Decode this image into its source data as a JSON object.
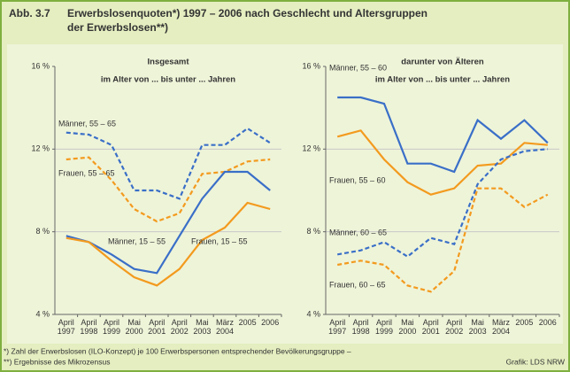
{
  "header": {
    "label": "Abb. 3.7",
    "title": [
      "Erwerbslosenquoten*) 1997 – 2006 nach Geschlecht und Altersgruppen",
      "der Erwerbslosen**)"
    ]
  },
  "chart_data": [
    {
      "type": "line",
      "title": "Insgesamt",
      "subtitle": "im Alter von ... bis unter ... Jahren",
      "categories": [
        "April 1997",
        "April 1998",
        "April 1999",
        "Mai 2000",
        "April 2001",
        "April 2002",
        "Mai 2003",
        "März 2004",
        "2005",
        "2006"
      ],
      "ylim": [
        4,
        16
      ],
      "yticks": [
        {
          "value": 4,
          "label": "4 %"
        },
        {
          "value": 8,
          "label": "8 %"
        },
        {
          "value": 12,
          "label": "12 %"
        },
        {
          "value": 16,
          "label": "16 %"
        }
      ],
      "grid": true,
      "series": [
        {
          "name": "Männer, 55 – 65",
          "color": "#3a6fc8",
          "style": "dashed",
          "values": [
            12.8,
            12.7,
            12.2,
            10.0,
            10.0,
            9.6,
            12.2,
            12.2,
            13.0,
            12.3
          ]
        },
        {
          "name": "Frauen, 55 – 65",
          "color": "#f39a1e",
          "style": "dashed",
          "values": [
            11.5,
            11.6,
            10.5,
            9.1,
            8.5,
            8.9,
            10.8,
            10.9,
            11.4,
            11.5
          ]
        },
        {
          "name": "Männer, 15 – 55",
          "color": "#3a6fc8",
          "style": "solid",
          "values": [
            7.8,
            7.5,
            6.9,
            6.2,
            6.0,
            7.8,
            9.6,
            10.9,
            10.9,
            10.0
          ]
        },
        {
          "name": "Frauen, 15 – 55",
          "color": "#f39a1e",
          "style": "solid",
          "values": [
            7.7,
            7.5,
            6.6,
            5.8,
            5.4,
            6.2,
            7.6,
            8.2,
            9.4,
            9.1
          ]
        }
      ]
    },
    {
      "type": "line",
      "title": "darunter von Älteren",
      "subtitle": "im Alter von ... bis unter ... Jahren",
      "categories": [
        "April 1997",
        "April 1998",
        "April 1999",
        "Mai 2000",
        "April 2001",
        "April 2002",
        "Mai 2003",
        "März 2004",
        "2005",
        "2006"
      ],
      "ylim": [
        4,
        16
      ],
      "yticks": [
        {
          "value": 4,
          "label": "4 %"
        },
        {
          "value": 8,
          "label": "8 %"
        },
        {
          "value": 12,
          "label": "12 %"
        },
        {
          "value": 16,
          "label": "16 %"
        }
      ],
      "grid": true,
      "series": [
        {
          "name": "Männer, 55 – 60",
          "color": "#3a6fc8",
          "style": "solid",
          "values": [
            14.5,
            14.5,
            14.2,
            11.3,
            11.3,
            10.9,
            13.4,
            12.5,
            13.4,
            12.3
          ]
        },
        {
          "name": "Frauen, 55 – 60",
          "color": "#f39a1e",
          "style": "solid",
          "values": [
            12.6,
            12.9,
            11.5,
            10.4,
            9.8,
            10.1,
            11.2,
            11.3,
            12.3,
            12.2
          ]
        },
        {
          "name": "Männer, 60 – 65",
          "color": "#3a6fc8",
          "style": "dashed",
          "values": [
            6.9,
            7.1,
            7.5,
            6.8,
            7.7,
            7.4,
            10.3,
            11.5,
            11.9,
            12.0
          ]
        },
        {
          "name": "Frauen, 60 – 65",
          "color": "#f39a1e",
          "style": "dashed",
          "values": [
            6.4,
            6.6,
            6.4,
            5.4,
            5.1,
            6.1,
            10.1,
            10.1,
            9.2,
            9.8
          ]
        }
      ]
    }
  ],
  "footer": {
    "notes": [
      "*) Zahl der Erwerbslosen (ILO-Konzept) je 100 Erwerbspersonen entsprechender Bevölkerungsgruppe –",
      "**) Ergebnisse des Mikrozensus"
    ],
    "source": "Grafik: LDS NRW"
  }
}
